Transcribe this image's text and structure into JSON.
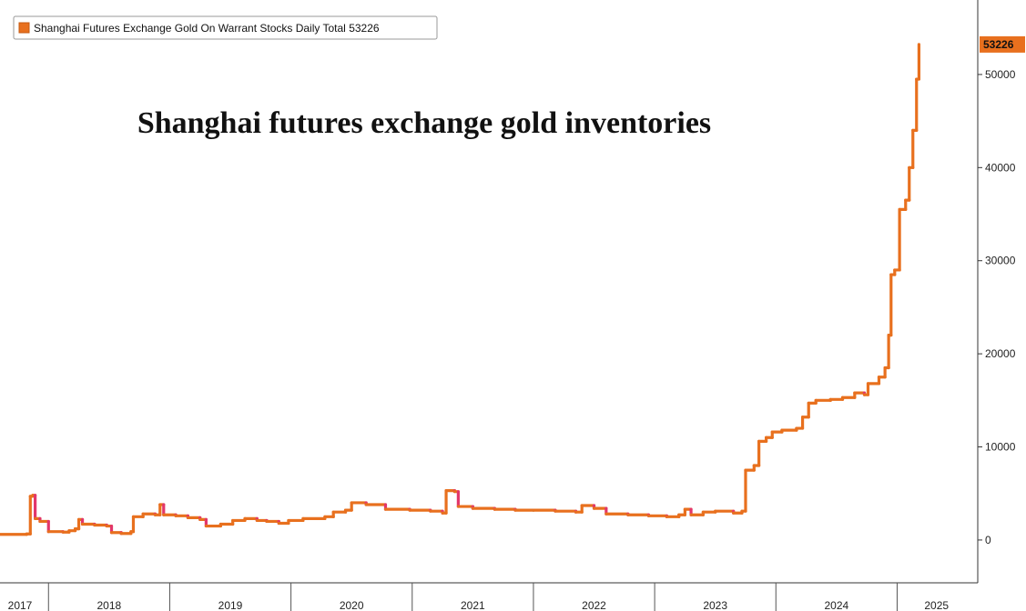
{
  "chart_data": {
    "type": "line",
    "title": "Shanghai futures exchange gold inventories",
    "legend": {
      "label": "Shanghai Futures Exchange Gold On Warrant Stocks Daily Total",
      "last_value": "53226",
      "placement": "top-left"
    },
    "last_value_label": "53226",
    "y_axis": {
      "position": "right",
      "ticks": [
        0,
        10000,
        20000,
        30000,
        40000,
        50000
      ],
      "ylim": [
        -4500,
        58000
      ]
    },
    "x_axis": {
      "labels": [
        "2017",
        "2018",
        "2019",
        "2020",
        "2021",
        "2022",
        "2023",
        "2024",
        "2025"
      ],
      "xlim": [
        2017.6,
        2025.65
      ]
    },
    "grid": false,
    "series": [
      {
        "color_up": "#e8701e",
        "color_down": "#e2366b",
        "color_flat": "#8a8a8a",
        "points": [
          [
            2017.6,
            600
          ],
          [
            2017.82,
            650
          ],
          [
            2017.85,
            4700
          ],
          [
            2017.87,
            4800
          ],
          [
            2017.89,
            2300
          ],
          [
            2017.93,
            2000
          ],
          [
            2018.0,
            900
          ],
          [
            2018.12,
            850
          ],
          [
            2018.17,
            1000
          ],
          [
            2018.22,
            1200
          ],
          [
            2018.25,
            2200
          ],
          [
            2018.28,
            1700
          ],
          [
            2018.38,
            1600
          ],
          [
            2018.48,
            1500
          ],
          [
            2018.52,
            800
          ],
          [
            2018.6,
            700
          ],
          [
            2018.68,
            900
          ],
          [
            2018.7,
            2500
          ],
          [
            2018.78,
            2800
          ],
          [
            2018.88,
            2700
          ],
          [
            2018.92,
            3800
          ],
          [
            2018.95,
            2700
          ],
          [
            2019.05,
            2600
          ],
          [
            2019.15,
            2400
          ],
          [
            2019.25,
            2200
          ],
          [
            2019.3,
            1500
          ],
          [
            2019.42,
            1700
          ],
          [
            2019.52,
            2100
          ],
          [
            2019.62,
            2300
          ],
          [
            2019.72,
            2100
          ],
          [
            2019.8,
            2000
          ],
          [
            2019.9,
            1800
          ],
          [
            2019.98,
            2100
          ],
          [
            2020.1,
            2300
          ],
          [
            2020.28,
            2500
          ],
          [
            2020.35,
            3000
          ],
          [
            2020.45,
            3200
          ],
          [
            2020.5,
            4000
          ],
          [
            2020.62,
            3800
          ],
          [
            2020.78,
            3300
          ],
          [
            2020.98,
            3200
          ],
          [
            2021.15,
            3100
          ],
          [
            2021.25,
            2900
          ],
          [
            2021.28,
            5300
          ],
          [
            2021.35,
            5200
          ],
          [
            2021.38,
            3600
          ],
          [
            2021.5,
            3400
          ],
          [
            2021.68,
            3300
          ],
          [
            2021.85,
            3200
          ],
          [
            2022.0,
            3200
          ],
          [
            2022.18,
            3100
          ],
          [
            2022.35,
            3000
          ],
          [
            2022.4,
            3700
          ],
          [
            2022.5,
            3400
          ],
          [
            2022.6,
            2800
          ],
          [
            2022.78,
            2700
          ],
          [
            2022.95,
            2600
          ],
          [
            2023.1,
            2500
          ],
          [
            2023.2,
            2700
          ],
          [
            2023.25,
            3300
          ],
          [
            2023.3,
            2700
          ],
          [
            2023.4,
            3000
          ],
          [
            2023.5,
            3100
          ],
          [
            2023.65,
            2900
          ],
          [
            2023.72,
            3100
          ],
          [
            2023.75,
            7500
          ],
          [
            2023.82,
            8000
          ],
          [
            2023.86,
            10600
          ],
          [
            2023.92,
            11000
          ],
          [
            2023.97,
            11600
          ],
          [
            2024.05,
            11800
          ],
          [
            2024.17,
            12000
          ],
          [
            2024.22,
            13200
          ],
          [
            2024.27,
            14700
          ],
          [
            2024.33,
            15000
          ],
          [
            2024.45,
            15100
          ],
          [
            2024.55,
            15300
          ],
          [
            2024.65,
            15800
          ],
          [
            2024.73,
            15600
          ],
          [
            2024.76,
            16800
          ],
          [
            2024.85,
            17500
          ],
          [
            2024.9,
            18500
          ],
          [
            2024.93,
            22000
          ],
          [
            2024.95,
            28500
          ],
          [
            2024.98,
            29000
          ],
          [
            2025.02,
            35500
          ],
          [
            2025.07,
            36500
          ],
          [
            2025.1,
            40000
          ],
          [
            2025.13,
            44000
          ],
          [
            2025.16,
            49500
          ],
          [
            2025.18,
            53226
          ]
        ]
      }
    ]
  }
}
